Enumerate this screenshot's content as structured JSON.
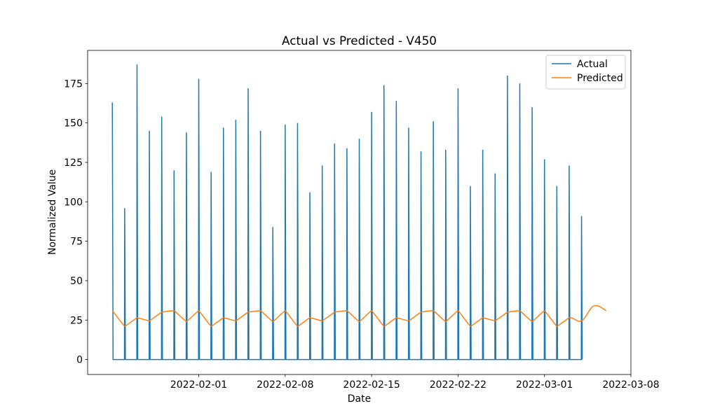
{
  "chart_data": {
    "type": "line",
    "title": "Actual vs Predicted - V450",
    "xlabel": "Date",
    "ylabel": "Normalized Value",
    "xlim": [
      "2022-01-23",
      "2022-03-08"
    ],
    "ylim": [
      -9.5,
      196
    ],
    "grid": false,
    "legend_position": "top-right",
    "x_ticks": [
      "2022-02-01",
      "2022-02-08",
      "2022-02-15",
      "2022-02-22",
      "2022-03-01",
      "2022-03-08"
    ],
    "y_ticks": [
      0,
      25,
      50,
      75,
      100,
      125,
      150,
      175
    ],
    "series": [
      {
        "name": "Actual",
        "color": "#1f77b4",
        "x": [
          "2022-01-25",
          "2022-01-26",
          "2022-01-27",
          "2022-01-28",
          "2022-01-29",
          "2022-01-30",
          "2022-01-31",
          "2022-02-01",
          "2022-02-02",
          "2022-02-03",
          "2022-02-04",
          "2022-02-05",
          "2022-02-06",
          "2022-02-07",
          "2022-02-08",
          "2022-02-09",
          "2022-02-10",
          "2022-02-11",
          "2022-02-12",
          "2022-02-13",
          "2022-02-14",
          "2022-02-15",
          "2022-02-16",
          "2022-02-17",
          "2022-02-18",
          "2022-02-19",
          "2022-02-20",
          "2022-02-21",
          "2022-02-22",
          "2022-02-23",
          "2022-02-24",
          "2022-02-25",
          "2022-02-26",
          "2022-02-27",
          "2022-02-28",
          "2022-03-01",
          "2022-03-02",
          "2022-03-03",
          "2022-03-04"
        ],
        "values": [
          163,
          96,
          187,
          145,
          154,
          120,
          144,
          178,
          119,
          147,
          152,
          172,
          145,
          84,
          149,
          150,
          106,
          123,
          137,
          134,
          140,
          157,
          174,
          164,
          147,
          132,
          151,
          133,
          172,
          110,
          133,
          118,
          180,
          175,
          160,
          127,
          110,
          123,
          91
        ]
      },
      {
        "name": "Predicted",
        "color": "#ff7f0e",
        "x": [
          "2022-01-25",
          "2022-01-26",
          "2022-01-27",
          "2022-01-28",
          "2022-01-29",
          "2022-01-30",
          "2022-01-31",
          "2022-02-01",
          "2022-02-02",
          "2022-02-03",
          "2022-02-04",
          "2022-02-05",
          "2022-02-06",
          "2022-02-07",
          "2022-02-08",
          "2022-02-09",
          "2022-02-10",
          "2022-02-11",
          "2022-02-12",
          "2022-02-13",
          "2022-02-14",
          "2022-02-15",
          "2022-02-16",
          "2022-02-17",
          "2022-02-18",
          "2022-02-19",
          "2022-02-20",
          "2022-02-21",
          "2022-02-22",
          "2022-02-23",
          "2022-02-24",
          "2022-02-25",
          "2022-02-26",
          "2022-02-27",
          "2022-02-28",
          "2022-03-01",
          "2022-03-02",
          "2022-03-03",
          "2022-03-04",
          "2022-03-05",
          "2022-03-06"
        ],
        "values": [
          31,
          21,
          26.5,
          24.5,
          30,
          31,
          24,
          31,
          21,
          26.5,
          24.5,
          30,
          31,
          24,
          31,
          21,
          26.5,
          24.5,
          30,
          31,
          24,
          31,
          21,
          26.5,
          24.5,
          30,
          31,
          24,
          31,
          21,
          26.5,
          24.5,
          30,
          31,
          24,
          31,
          21,
          26.5,
          24.5,
          34,
          31
        ]
      }
    ]
  }
}
